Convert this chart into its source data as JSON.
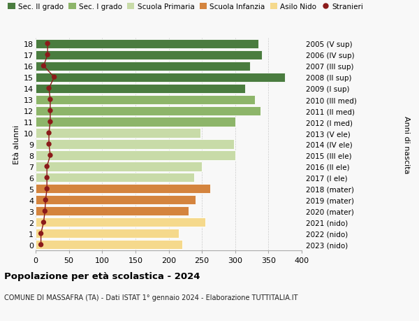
{
  "ages": [
    0,
    1,
    2,
    3,
    4,
    5,
    6,
    7,
    8,
    9,
    10,
    11,
    12,
    13,
    14,
    15,
    16,
    17,
    18
  ],
  "bar_values": [
    220,
    215,
    255,
    230,
    240,
    262,
    238,
    250,
    300,
    298,
    248,
    300,
    338,
    330,
    315,
    375,
    322,
    340,
    335
  ],
  "stranieri": [
    8,
    8,
    12,
    14,
    15,
    17,
    17,
    17,
    22,
    20,
    20,
    22,
    22,
    22,
    20,
    28,
    12,
    18,
    18
  ],
  "bar_colors": [
    "#f5d98c",
    "#f5d98c",
    "#f5d98c",
    "#d4843e",
    "#d4843e",
    "#d4843e",
    "#c8dba8",
    "#c8dba8",
    "#c8dba8",
    "#c8dba8",
    "#c8dba8",
    "#8db56a",
    "#8db56a",
    "#8db56a",
    "#4a7c3f",
    "#4a7c3f",
    "#4a7c3f",
    "#4a7c3f",
    "#4a7c3f"
  ],
  "right_labels": [
    "2023 (nido)",
    "2022 (nido)",
    "2021 (nido)",
    "2020 (mater)",
    "2019 (mater)",
    "2018 (mater)",
    "2017 (I ele)",
    "2016 (II ele)",
    "2015 (III ele)",
    "2014 (IV ele)",
    "2013 (V ele)",
    "2012 (I med)",
    "2011 (II med)",
    "2010 (III med)",
    "2009 (I sup)",
    "2008 (II sup)",
    "2007 (III sup)",
    "2006 (IV sup)",
    "2005 (V sup)"
  ],
  "legend_labels": [
    "Sec. II grado",
    "Sec. I grado",
    "Scuola Primaria",
    "Scuola Infanzia",
    "Asilo Nido",
    "Stranieri"
  ],
  "legend_colors": [
    "#4a7c3f",
    "#8db56a",
    "#c8dba8",
    "#d4843e",
    "#f5d98c",
    "#9b1c1c"
  ],
  "ylabel": "Età alunni",
  "right_ylabel": "Anni di nascita",
  "title": "Popolazione per età scolastica - 2024",
  "subtitle": "COMUNE DI MASSAFRA (TA) - Dati ISTAT 1° gennaio 2024 - Elaborazione TUTTITALIA.IT",
  "xlim": [
    0,
    400
  ],
  "xticks": [
    0,
    50,
    100,
    150,
    200,
    250,
    300,
    350,
    400
  ],
  "background_color": "#f8f8f8",
  "stranieri_color": "#8b1a1a",
  "line_color": "#8b1a1a"
}
